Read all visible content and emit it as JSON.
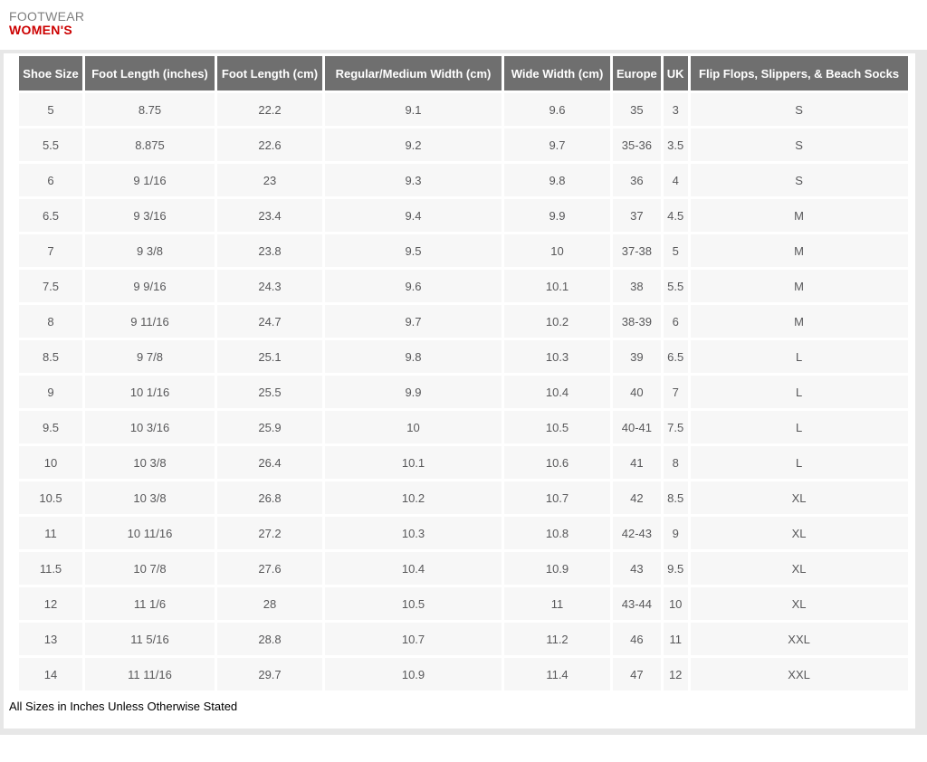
{
  "header": {
    "category": "FOOTWEAR",
    "title": "WOMEN'S"
  },
  "table": {
    "columns": [
      "Shoe Size",
      "Foot Length (inches)",
      "Foot Length (cm)",
      "Regular/Medium Width (cm)",
      "Wide Width (cm)",
      "Europe",
      "UK",
      "Flip Flops, Slippers, & Beach Socks"
    ],
    "rows": [
      [
        "5",
        "8.75",
        "22.2",
        "9.1",
        "9.6",
        "35",
        "3",
        "S"
      ],
      [
        "5.5",
        "8.875",
        "22.6",
        "9.2",
        "9.7",
        "35-36",
        "3.5",
        "S"
      ],
      [
        "6",
        "9 1/16",
        "23",
        "9.3",
        "9.8",
        "36",
        "4",
        "S"
      ],
      [
        "6.5",
        "9 3/16",
        "23.4",
        "9.4",
        "9.9",
        "37",
        "4.5",
        "M"
      ],
      [
        "7",
        "9 3/8",
        "23.8",
        "9.5",
        "10",
        "37-38",
        "5",
        "M"
      ],
      [
        "7.5",
        "9 9/16",
        "24.3",
        "9.6",
        "10.1",
        "38",
        "5.5",
        "M"
      ],
      [
        "8",
        "9 11/16",
        "24.7",
        "9.7",
        "10.2",
        "38-39",
        "6",
        "M"
      ],
      [
        "8.5",
        "9 7/8",
        "25.1",
        "9.8",
        "10.3",
        "39",
        "6.5",
        "L"
      ],
      [
        "9",
        "10 1/16",
        "25.5",
        "9.9",
        "10.4",
        "40",
        "7",
        "L"
      ],
      [
        "9.5",
        "10 3/16",
        "25.9",
        "10",
        "10.5",
        "40-41",
        "7.5",
        "L"
      ],
      [
        "10",
        "10 3/8",
        "26.4",
        "10.1",
        "10.6",
        "41",
        "8",
        "L"
      ],
      [
        "10.5",
        "10 3/8",
        "26.8",
        "10.2",
        "10.7",
        "42",
        "8.5",
        "XL"
      ],
      [
        "11",
        "10 11/16",
        "27.2",
        "10.3",
        "10.8",
        "42-43",
        "9",
        "XL"
      ],
      [
        "11.5",
        "10 7/8",
        "27.6",
        "10.4",
        "10.9",
        "43",
        "9.5",
        "XL"
      ],
      [
        "12",
        "11 1/6",
        "28",
        "10.5",
        "11",
        "43-44",
        "10",
        "XL"
      ],
      [
        "13",
        "11 5/16",
        "28.8",
        "10.7",
        "11.2",
        "46",
        "11",
        "XXL"
      ],
      [
        "14",
        "11 11/16",
        "29.7",
        "10.9",
        "11.4",
        "47",
        "12",
        "XXL"
      ]
    ]
  },
  "footnote": "All Sizes in Inches Unless Otherwise Stated",
  "colors": {
    "header_bg": "#6f6f6f",
    "header_text": "#ffffff",
    "row_bg": "#f7f7f7",
    "cell_text": "#58585a",
    "category_text": "#7f7f7f",
    "title_text": "#cc0000",
    "panel_border": "#e7e7e7"
  }
}
